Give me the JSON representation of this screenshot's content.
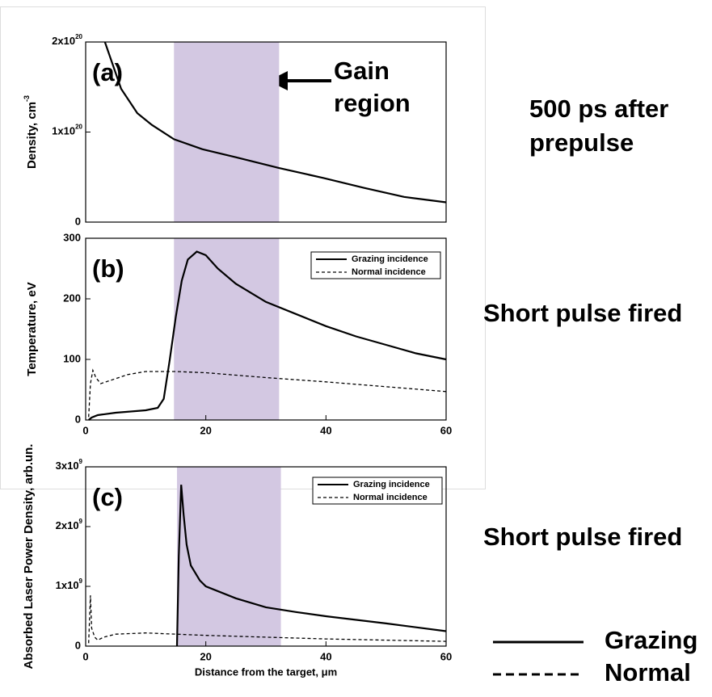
{
  "chart_data": [
    {
      "type": "line",
      "panel_label": "(a)",
      "ylabel": "Density,  cm",
      "ylabel_sup": "-3",
      "xlim": [
        0,
        60
      ],
      "ylim": [
        0,
        2e+20
      ],
      "yticks": [
        0,
        {
          "value": 1e+20,
          "label": "1x10",
          "sup": "20"
        },
        {
          "value": 2e+20,
          "label": "2x10",
          "sup": "20"
        }
      ],
      "shade": [
        14.7,
        32.2
      ],
      "shade_color": "#d3c8e2",
      "annotation_lines": [
        "Gain",
        "region"
      ],
      "series": [
        {
          "color": "#000000",
          "dash": false,
          "x": [
            3.2,
            5.9,
            8.6,
            11,
            14.7,
            19.4,
            25,
            32.2,
            39.6,
            46.3,
            53,
            60
          ],
          "values": [
            2e+20,
            1.48e+20,
            1.21e+20,
            1.08e+20,
            9.2e+19,
            8.1e+19,
            7.2e+19,
            6e+19,
            4.9e+19,
            3.8e+19,
            2.8e+19,
            2.2e+19
          ]
        }
      ]
    },
    {
      "type": "line",
      "panel_label": "(b)",
      "ylabel": "Temperature,  eV",
      "xlim": [
        0,
        60
      ],
      "ylim": [
        0,
        300
      ],
      "xticks": [
        0,
        20,
        40,
        60
      ],
      "yticks": [
        0,
        100,
        200,
        300
      ],
      "shade": [
        14.7,
        32.2
      ],
      "shade_color": "#d3c8e2",
      "series": [
        {
          "name": "Grazing incidence",
          "color": "#000000",
          "dash": false,
          "x": [
            0.5,
            1,
            2,
            5,
            10,
            12,
            13,
            14,
            15,
            16,
            17,
            18.5,
            20,
            22,
            25,
            30,
            35,
            40,
            45,
            50,
            55,
            60
          ],
          "values": [
            0,
            4,
            8,
            12,
            16,
            20,
            35,
            100,
            170,
            230,
            265,
            278,
            272,
            250,
            225,
            195,
            175,
            155,
            138,
            124,
            110,
            100
          ]
        },
        {
          "name": "Normal incidence",
          "color": "#000000",
          "dash": true,
          "x": [
            0.5,
            0.8,
            1.2,
            1.7,
            2.5,
            4,
            7,
            10,
            15,
            20,
            30,
            40,
            50,
            60
          ],
          "values": [
            5,
            60,
            82,
            70,
            60,
            65,
            75,
            80,
            80,
            78,
            70,
            63,
            55,
            47
          ]
        }
      ]
    },
    {
      "type": "line",
      "panel_label": "(c)",
      "ylabel": "Absorbed Laser Power Density,  arb.un.",
      "xlabel": "Distance from the target,  μm",
      "xlim": [
        0,
        60
      ],
      "ylim": [
        0,
        3000000000.0
      ],
      "xticks": [
        0,
        20,
        40,
        60
      ],
      "yticks": [
        0,
        {
          "value": 1000000000.0,
          "label": "1x10",
          "sup": "9"
        },
        {
          "value": 2000000000.0,
          "label": "2x10",
          "sup": "9"
        },
        {
          "value": 3000000000.0,
          "label": "3x10",
          "sup": "9"
        }
      ],
      "shade": [
        15.2,
        32.5
      ],
      "shade_color": "#d3c8e2",
      "series": [
        {
          "name": "Grazing incidence",
          "color": "#000000",
          "dash": false,
          "x": [
            15.2,
            15.5,
            15.9,
            16.3,
            16.8,
            17.5,
            19,
            20,
            25,
            30,
            35,
            40,
            50,
            60
          ],
          "values": [
            0,
            1500000000.0,
            2700000000.0,
            2200000000.0,
            1700000000.0,
            1350000000.0,
            1100000000.0,
            1000000000.0,
            800000000.0,
            650000000.0,
            570000000.0,
            500000000.0,
            380000000.0,
            250000000.0
          ]
        },
        {
          "name": "Normal incidence",
          "color": "#000000",
          "dash": true,
          "x": [
            0.5,
            0.8,
            1,
            1.5,
            2,
            3,
            5,
            10,
            15,
            20,
            30,
            40,
            50,
            60
          ],
          "values": [
            50000000.0,
            850000000.0,
            300000000.0,
            150000000.0,
            100000000.0,
            150000000.0,
            200000000.0,
            220000000.0,
            200000000.0,
            180000000.0,
            150000000.0,
            120000000.0,
            100000000.0,
            80000000.0
          ]
        }
      ]
    }
  ],
  "side_text": {
    "prepulse_lines": [
      "500 ps after",
      "prepulse"
    ],
    "fired_b": "Short pulse fired",
    "fired_c": "Short pulse fired",
    "key_grazing": "Grazing",
    "key_normal": "Normal"
  }
}
